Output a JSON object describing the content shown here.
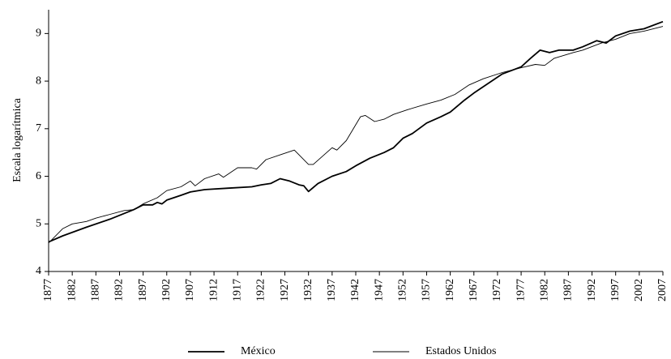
{
  "chart_data": {
    "type": "line",
    "ylabel": "Escala logarítmica",
    "xlim": [
      1877,
      2007
    ],
    "xticks": [
      1877,
      1882,
      1887,
      1892,
      1897,
      1902,
      1907,
      1912,
      1917,
      1922,
      1927,
      1932,
      1937,
      1942,
      1947,
      1952,
      1957,
      1962,
      1967,
      1972,
      1977,
      1982,
      1987,
      1992,
      1997,
      2002,
      2007
    ],
    "ylim": [
      4,
      9.5
    ],
    "yticks": [
      4,
      5,
      6,
      7,
      8,
      9
    ],
    "series": [
      {
        "name": "México",
        "color": "#000000",
        "x": [
          1877,
          1880,
          1885,
          1890,
          1895,
          1897,
          1899,
          1900,
          1901,
          1902,
          1905,
          1907,
          1910,
          1915,
          1920,
          1922,
          1924,
          1926,
          1928,
          1930,
          1931,
          1932,
          1934,
          1937,
          1940,
          1942,
          1945,
          1948,
          1950,
          1952,
          1954,
          1957,
          1960,
          1962,
          1965,
          1967,
          1970,
          1973,
          1977,
          1979,
          1981,
          1983,
          1985,
          1988,
          1990,
          1993,
          1995,
          1997,
          2000,
          2003,
          2007
        ],
        "values": [
          4.62,
          4.75,
          4.93,
          5.1,
          5.3,
          5.4,
          5.4,
          5.45,
          5.42,
          5.5,
          5.6,
          5.67,
          5.72,
          5.75,
          5.78,
          5.82,
          5.85,
          5.95,
          5.9,
          5.82,
          5.8,
          5.68,
          5.85,
          6.0,
          6.1,
          6.22,
          6.38,
          6.5,
          6.6,
          6.8,
          6.9,
          7.12,
          7.25,
          7.35,
          7.6,
          7.75,
          7.95,
          8.15,
          8.3,
          8.48,
          8.65,
          8.6,
          8.65,
          8.65,
          8.72,
          8.85,
          8.8,
          8.95,
          9.05,
          9.1,
          9.25
        ]
      },
      {
        "name": "Estados Unidos",
        "color": "#000000",
        "x": [
          1877,
          1880,
          1882,
          1885,
          1887,
          1890,
          1893,
          1895,
          1897,
          1900,
          1902,
          1905,
          1907,
          1908,
          1910,
          1913,
          1914,
          1917,
          1920,
          1921,
          1923,
          1926,
          1929,
          1932,
          1933,
          1937,
          1938,
          1940,
          1943,
          1944,
          1946,
          1948,
          1950,
          1953,
          1957,
          1960,
          1963,
          1966,
          1969,
          1973,
          1977,
          1980,
          1982,
          1984,
          1988,
          1990,
          1994,
          1997,
          2000,
          2003,
          2007
        ],
        "values": [
          4.6,
          4.9,
          5.0,
          5.05,
          5.12,
          5.2,
          5.28,
          5.3,
          5.42,
          5.55,
          5.7,
          5.78,
          5.9,
          5.8,
          5.95,
          6.05,
          5.98,
          6.18,
          6.18,
          6.15,
          6.35,
          6.45,
          6.55,
          6.25,
          6.25,
          6.6,
          6.55,
          6.75,
          7.25,
          7.28,
          7.15,
          7.2,
          7.3,
          7.4,
          7.52,
          7.6,
          7.72,
          7.92,
          8.05,
          8.18,
          8.28,
          8.35,
          8.33,
          8.48,
          8.6,
          8.65,
          8.8,
          8.88,
          9.0,
          9.05,
          9.15
        ]
      }
    ]
  }
}
